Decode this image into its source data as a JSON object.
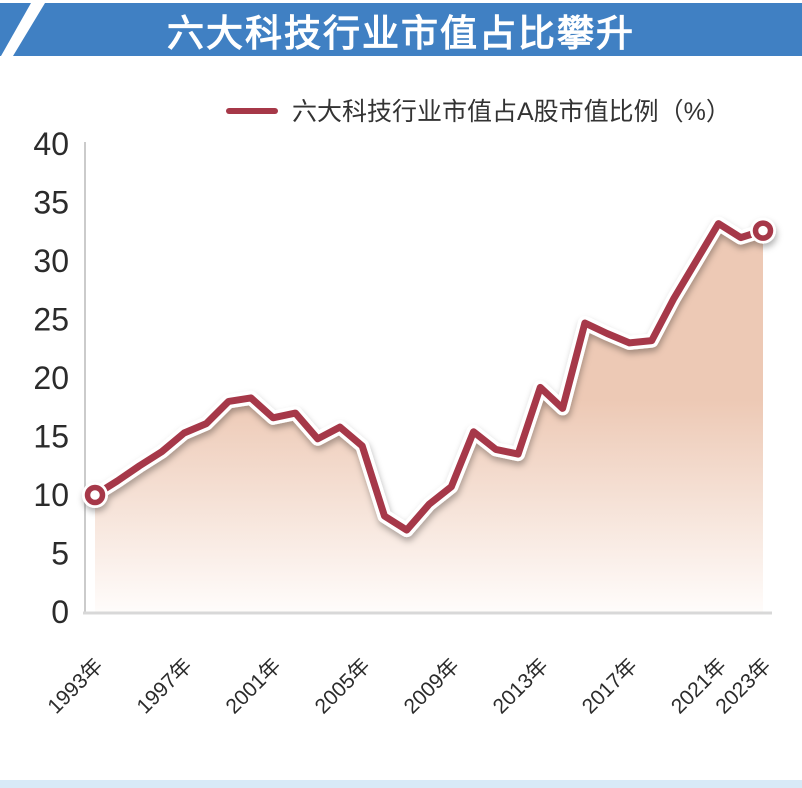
{
  "banner": {
    "title": "六大科技行业市值占比攀升",
    "bg_color": "#4080c3",
    "text_color": "#ffffff"
  },
  "legend": {
    "label": "六大科技行业市值占A股市值比例（%）",
    "line_color": "#a63848"
  },
  "chart_data": {
    "type": "area",
    "title": "六大科技行业市值占比攀升",
    "xlabel": "",
    "ylabel": "",
    "ylim": [
      0,
      40
    ],
    "yticks": [
      0,
      5,
      10,
      15,
      20,
      25,
      30,
      35,
      40
    ],
    "grid": false,
    "legend_position": "top",
    "x": [
      1993,
      1994,
      1995,
      1996,
      1997,
      1998,
      1999,
      2000,
      2001,
      2002,
      2003,
      2004,
      2005,
      2006,
      2007,
      2008,
      2009,
      2010,
      2011,
      2012,
      2013,
      2014,
      2015,
      2016,
      2017,
      2018,
      2019,
      2020,
      2021,
      2022,
      2023
    ],
    "x_ticks": [
      {
        "year": 1993,
        "label": "1993年"
      },
      {
        "year": 1997,
        "label": "1997年"
      },
      {
        "year": 2001,
        "label": "2001年"
      },
      {
        "year": 2005,
        "label": "2005年"
      },
      {
        "year": 2009,
        "label": "2009年"
      },
      {
        "year": 2013,
        "label": "2013年"
      },
      {
        "year": 2017,
        "label": "2017年"
      },
      {
        "year": 2021,
        "label": "2021年"
      },
      {
        "year": 2023,
        "label": "2023年"
      }
    ],
    "series": [
      {
        "name": "六大科技行业市值占A股市值比例（%）",
        "values": [
          10.0,
          11.2,
          12.5,
          13.7,
          15.3,
          16.1,
          18.0,
          18.3,
          16.6,
          17.0,
          14.8,
          15.8,
          14.2,
          8.2,
          7.0,
          9.2,
          10.7,
          15.4,
          13.9,
          13.5,
          19.2,
          17.4,
          24.7,
          23.8,
          23.0,
          23.2,
          26.8,
          30.0,
          33.2,
          32.0,
          32.6
        ]
      }
    ],
    "line_color": "#a63848",
    "line_casing_color": "#ffffff",
    "area_top_color": "#edc9b5",
    "area_bottom_color": "#fffdfc",
    "axis_color": "#cbcbcb",
    "tick_text_color": "#2b2b2b",
    "markers": "first and last point only"
  },
  "footer": {
    "bar_color": "#d8eaf7"
  }
}
